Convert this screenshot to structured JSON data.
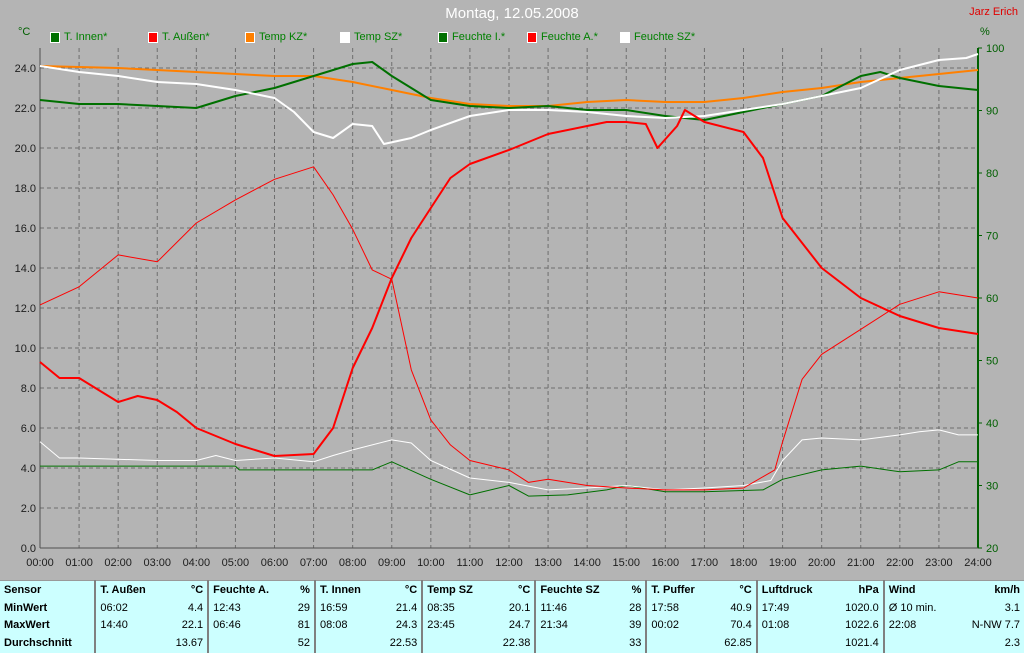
{
  "header": {
    "title": "Montag, 12.05.2008",
    "author": "Jarz Erich",
    "unit_left": "°C",
    "unit_right": "%"
  },
  "legend": [
    {
      "label": "T. Innen*",
      "color": "#007000"
    },
    {
      "label": "T. Außen*",
      "color": "#ff0000"
    },
    {
      "label": "Temp KZ*",
      "color": "#ff8000"
    },
    {
      "label": "Temp SZ*",
      "color": "#ffffff"
    },
    {
      "label": "Feuchte I.*",
      "color": "#007000"
    },
    {
      "label": "Feuchte A.*",
      "color": "#ff0000"
    },
    {
      "label": "Feuchte SZ*",
      "color": "#ffffff"
    }
  ],
  "chart_data": {
    "type": "line",
    "title": "Montag, 12.05.2008",
    "x_ticks": [
      "00:00",
      "01:00",
      "02:00",
      "03:00",
      "04:00",
      "05:00",
      "06:00",
      "07:00",
      "08:00",
      "09:00",
      "10:00",
      "11:00",
      "12:00",
      "13:00",
      "14:00",
      "15:00",
      "16:00",
      "17:00",
      "18:00",
      "19:00",
      "20:00",
      "21:00",
      "22:00",
      "23:00",
      "24:00"
    ],
    "y_left": {
      "label": "°C",
      "range": [
        0,
        25
      ],
      "ticks": [
        "0.0",
        "2.0",
        "4.0",
        "6.0",
        "8.0",
        "10.0",
        "12.0",
        "14.0",
        "16.0",
        "18.0",
        "20.0",
        "22.0",
        "24.0"
      ]
    },
    "y_right": {
      "label": "%",
      "range": [
        20,
        100
      ],
      "ticks": [
        "20",
        "30",
        "40",
        "50",
        "60",
        "70",
        "80",
        "90",
        "100"
      ]
    },
    "grid": true,
    "legend_position": "top",
    "series": [
      {
        "name": "T. Innen*",
        "axis": "left",
        "color": "#007000",
        "width": 2,
        "points": [
          [
            0,
            22.4
          ],
          [
            1,
            22.2
          ],
          [
            2,
            22.2
          ],
          [
            3,
            22.1
          ],
          [
            4,
            22.0
          ],
          [
            5,
            22.6
          ],
          [
            6,
            23.0
          ],
          [
            7,
            23.6
          ],
          [
            8,
            24.2
          ],
          [
            8.5,
            24.3
          ],
          [
            9,
            23.6
          ],
          [
            10,
            22.4
          ],
          [
            11,
            22.1
          ],
          [
            12,
            22.0
          ],
          [
            13,
            22.1
          ],
          [
            14,
            21.9
          ],
          [
            15,
            21.9
          ],
          [
            16,
            21.6
          ],
          [
            17,
            21.4
          ],
          [
            18,
            21.8
          ],
          [
            19,
            22.2
          ],
          [
            20,
            22.6
          ],
          [
            21,
            23.6
          ],
          [
            21.5,
            23.8
          ],
          [
            22,
            23.5
          ],
          [
            23,
            23.1
          ],
          [
            24,
            22.9
          ]
        ]
      },
      {
        "name": "T. Außen*",
        "axis": "left",
        "color": "#ff0000",
        "width": 2,
        "points": [
          [
            0,
            9.3
          ],
          [
            0.5,
            8.5
          ],
          [
            1,
            8.5
          ],
          [
            1.5,
            7.9
          ],
          [
            2,
            7.3
          ],
          [
            2.5,
            7.6
          ],
          [
            3,
            7.4
          ],
          [
            3.5,
            6.8
          ],
          [
            4,
            6.0
          ],
          [
            5,
            5.2
          ],
          [
            6,
            4.6
          ],
          [
            7,
            4.7
          ],
          [
            7.5,
            6.0
          ],
          [
            8,
            9.0
          ],
          [
            8.5,
            11.0
          ],
          [
            9,
            13.5
          ],
          [
            9.5,
            15.5
          ],
          [
            10,
            17.0
          ],
          [
            10.5,
            18.5
          ],
          [
            11,
            19.2
          ],
          [
            12,
            19.9
          ],
          [
            13,
            20.7
          ],
          [
            14,
            21.1
          ],
          [
            14.5,
            21.3
          ],
          [
            15,
            21.3
          ],
          [
            15.5,
            21.2
          ],
          [
            15.8,
            20.0
          ],
          [
            16.3,
            21.1
          ],
          [
            16.5,
            21.9
          ],
          [
            17,
            21.3
          ],
          [
            18,
            20.8
          ],
          [
            18.5,
            19.5
          ],
          [
            19,
            16.5
          ],
          [
            20,
            14.0
          ],
          [
            21,
            12.5
          ],
          [
            22,
            11.6
          ],
          [
            23,
            11.0
          ],
          [
            24,
            10.7
          ]
        ]
      },
      {
        "name": "Temp KZ*",
        "axis": "left",
        "color": "#ff8000",
        "width": 2,
        "points": [
          [
            0,
            24.1
          ],
          [
            2,
            24.0
          ],
          [
            4,
            23.8
          ],
          [
            6,
            23.6
          ],
          [
            7,
            23.6
          ],
          [
            8,
            23.3
          ],
          [
            9,
            22.9
          ],
          [
            10,
            22.5
          ],
          [
            11,
            22.2
          ],
          [
            12,
            22.1
          ],
          [
            13,
            22.1
          ],
          [
            14,
            22.3
          ],
          [
            15,
            22.4
          ],
          [
            16,
            22.3
          ],
          [
            17,
            22.3
          ],
          [
            18,
            22.5
          ],
          [
            19,
            22.8
          ],
          [
            20,
            23.0
          ],
          [
            21,
            23.3
          ],
          [
            22,
            23.5
          ],
          [
            23,
            23.7
          ],
          [
            24,
            23.9
          ]
        ]
      },
      {
        "name": "Temp SZ*",
        "axis": "left",
        "color": "#ffffff",
        "width": 2,
        "points": [
          [
            0,
            24.1
          ],
          [
            1,
            23.8
          ],
          [
            2,
            23.6
          ],
          [
            3,
            23.3
          ],
          [
            4,
            23.2
          ],
          [
            5,
            22.9
          ],
          [
            6,
            22.5
          ],
          [
            6.5,
            21.8
          ],
          [
            7,
            20.8
          ],
          [
            7.5,
            20.5
          ],
          [
            8,
            21.2
          ],
          [
            8.5,
            21.1
          ],
          [
            8.8,
            20.2
          ],
          [
            9.5,
            20.5
          ],
          [
            10,
            20.9
          ],
          [
            11,
            21.6
          ],
          [
            12,
            21.9
          ],
          [
            13,
            21.9
          ],
          [
            14,
            21.8
          ],
          [
            15,
            21.6
          ],
          [
            16,
            21.5
          ],
          [
            17,
            21.6
          ],
          [
            18,
            21.9
          ],
          [
            19,
            22.2
          ],
          [
            20,
            22.6
          ],
          [
            21,
            23.0
          ],
          [
            22,
            23.9
          ],
          [
            23,
            24.4
          ],
          [
            23.7,
            24.5
          ],
          [
            24,
            24.7
          ]
        ]
      },
      {
        "name": "Feuchte I.*",
        "axis": "right",
        "color": "#007000",
        "width": 1,
        "points": [
          [
            0,
            33.1
          ],
          [
            5,
            33.1
          ],
          [
            5.1,
            32.5
          ],
          [
            8.5,
            32.5
          ],
          [
            9,
            33.8
          ],
          [
            10,
            31
          ],
          [
            11,
            28.5
          ],
          [
            12,
            30
          ],
          [
            12.5,
            28.3
          ],
          [
            13.5,
            28.5
          ],
          [
            14.5,
            29.3
          ],
          [
            15,
            30
          ],
          [
            16,
            29
          ],
          [
            17,
            29
          ],
          [
            18.5,
            29.3
          ],
          [
            19,
            31
          ],
          [
            20,
            32.5
          ],
          [
            21,
            33.1
          ],
          [
            22,
            32.2
          ],
          [
            23,
            32.5
          ],
          [
            23.5,
            33.8
          ],
          [
            24,
            33.8
          ]
        ]
      },
      {
        "name": "Feuchte A.*",
        "axis": "right",
        "color": "#ff0000",
        "width": 1,
        "points": [
          [
            0,
            58.9
          ],
          [
            1,
            61.8
          ],
          [
            2,
            66.9
          ],
          [
            3,
            65.8
          ],
          [
            4,
            72
          ],
          [
            5,
            75.7
          ],
          [
            6,
            79
          ],
          [
            7,
            81
          ],
          [
            7.5,
            76.5
          ],
          [
            8,
            71
          ],
          [
            8.5,
            64.5
          ],
          [
            9,
            63
          ],
          [
            9.5,
            48.5
          ],
          [
            10,
            40.5
          ],
          [
            10.5,
            36.5
          ],
          [
            11,
            34
          ],
          [
            12,
            32.5
          ],
          [
            12.5,
            30.5
          ],
          [
            13,
            31
          ],
          [
            14,
            30
          ],
          [
            15,
            29.6
          ],
          [
            16,
            29.3
          ],
          [
            17,
            29.3
          ],
          [
            18,
            29.6
          ],
          [
            18.8,
            32.5
          ],
          [
            19,
            37
          ],
          [
            19.5,
            47
          ],
          [
            20,
            51
          ],
          [
            21,
            55
          ],
          [
            22,
            59
          ],
          [
            23,
            61
          ],
          [
            23.5,
            60.5
          ],
          [
            24,
            60
          ]
        ]
      },
      {
        "name": "Feuchte SZ*",
        "axis": "right",
        "color": "#ffffff",
        "width": 1,
        "points": [
          [
            0,
            37
          ],
          [
            0.5,
            34.4
          ],
          [
            1,
            34.4
          ],
          [
            3,
            34
          ],
          [
            4,
            34
          ],
          [
            4.5,
            34.8
          ],
          [
            5,
            34
          ],
          [
            6,
            34.4
          ],
          [
            7,
            33.8
          ],
          [
            7.5,
            34.8
          ],
          [
            8,
            35.7
          ],
          [
            9,
            37.3
          ],
          [
            9.5,
            36.8
          ],
          [
            10,
            34
          ],
          [
            11,
            31.2
          ],
          [
            12,
            30.5
          ],
          [
            13,
            29.3
          ],
          [
            14,
            29.6
          ],
          [
            15,
            30
          ],
          [
            16,
            29.3
          ],
          [
            17,
            29.6
          ],
          [
            18,
            30
          ],
          [
            18.7,
            30.8
          ],
          [
            19,
            34
          ],
          [
            19.5,
            37.3
          ],
          [
            20,
            37.6
          ],
          [
            21,
            37.3
          ],
          [
            22,
            38.1
          ],
          [
            22.5,
            38.6
          ],
          [
            23,
            38.9
          ],
          [
            23.5,
            38.1
          ],
          [
            24,
            38.1
          ]
        ]
      }
    ]
  },
  "stats": {
    "row_labels": [
      "Sensor",
      "MinWert",
      "MaxWert",
      "Durchschnitt"
    ],
    "columns": [
      {
        "name": "T. Außen",
        "unit": "°C",
        "min_time": "06:02",
        "min": "4.4",
        "max_time": "14:40",
        "max": "22.1",
        "avg": "13.67"
      },
      {
        "name": "Feuchte A.",
        "unit": "%",
        "min_time": "12:43",
        "min": "29",
        "max_time": "06:46",
        "max": "81",
        "avg": "52"
      },
      {
        "name": "T. Innen",
        "unit": "°C",
        "min_time": "16:59",
        "min": "21.4",
        "max_time": "08:08",
        "max": "24.3",
        "avg": "22.53"
      },
      {
        "name": "Temp SZ",
        "unit": "°C",
        "min_time": "08:35",
        "min": "20.1",
        "max_time": "23:45",
        "max": "24.7",
        "avg": "22.38"
      },
      {
        "name": "Feuchte SZ",
        "unit": "%",
        "min_time": "11:46",
        "min": "28",
        "max_time": "21:34",
        "max": "39",
        "avg": "33"
      },
      {
        "name": "T. Puffer",
        "unit": "°C",
        "min_time": "17:58",
        "min": "40.9",
        "max_time": "00:02",
        "max": "70.4",
        "avg": "62.85"
      },
      {
        "name": "Luftdruck",
        "unit": "hPa",
        "min_time": "17:49",
        "min": "1020.0",
        "max_time": "01:08",
        "max": "1022.6",
        "avg": "1021.4"
      },
      {
        "name": "Wind",
        "unit": "km/h",
        "min_time": "Ø 10 min.",
        "min": "3.1",
        "max_time": "22:08",
        "max": "N-NW 7.7",
        "avg": "2.3"
      }
    ]
  }
}
